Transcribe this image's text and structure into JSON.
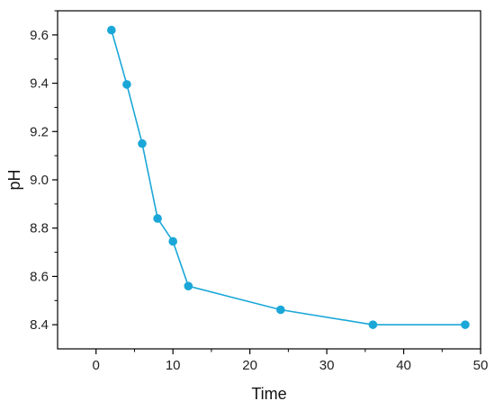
{
  "chart_data": {
    "type": "line",
    "xlabel": "Time",
    "ylabel": "pH",
    "xlim": [
      -5,
      50
    ],
    "ylim": [
      8.3,
      9.7
    ],
    "xticks": [
      0,
      10,
      20,
      30,
      40,
      50
    ],
    "yticks": [
      8.4,
      8.6,
      8.8,
      9.0,
      9.2,
      9.4,
      9.6
    ],
    "xtick_labels": [
      "0",
      "10",
      "20",
      "30",
      "40",
      "50"
    ],
    "ytick_labels": [
      "8.4",
      "8.6",
      "8.8",
      "9.0",
      "9.2",
      "9.4",
      "9.6"
    ],
    "grid": false,
    "series": [
      {
        "color": "#1aa7d8",
        "x": [
          2,
          4,
          6,
          8,
          10,
          12,
          24,
          36,
          48
        ],
        "y": [
          9.62,
          9.395,
          9.15,
          8.84,
          8.745,
          8.56,
          8.462,
          8.4,
          8.4
        ]
      }
    ]
  }
}
